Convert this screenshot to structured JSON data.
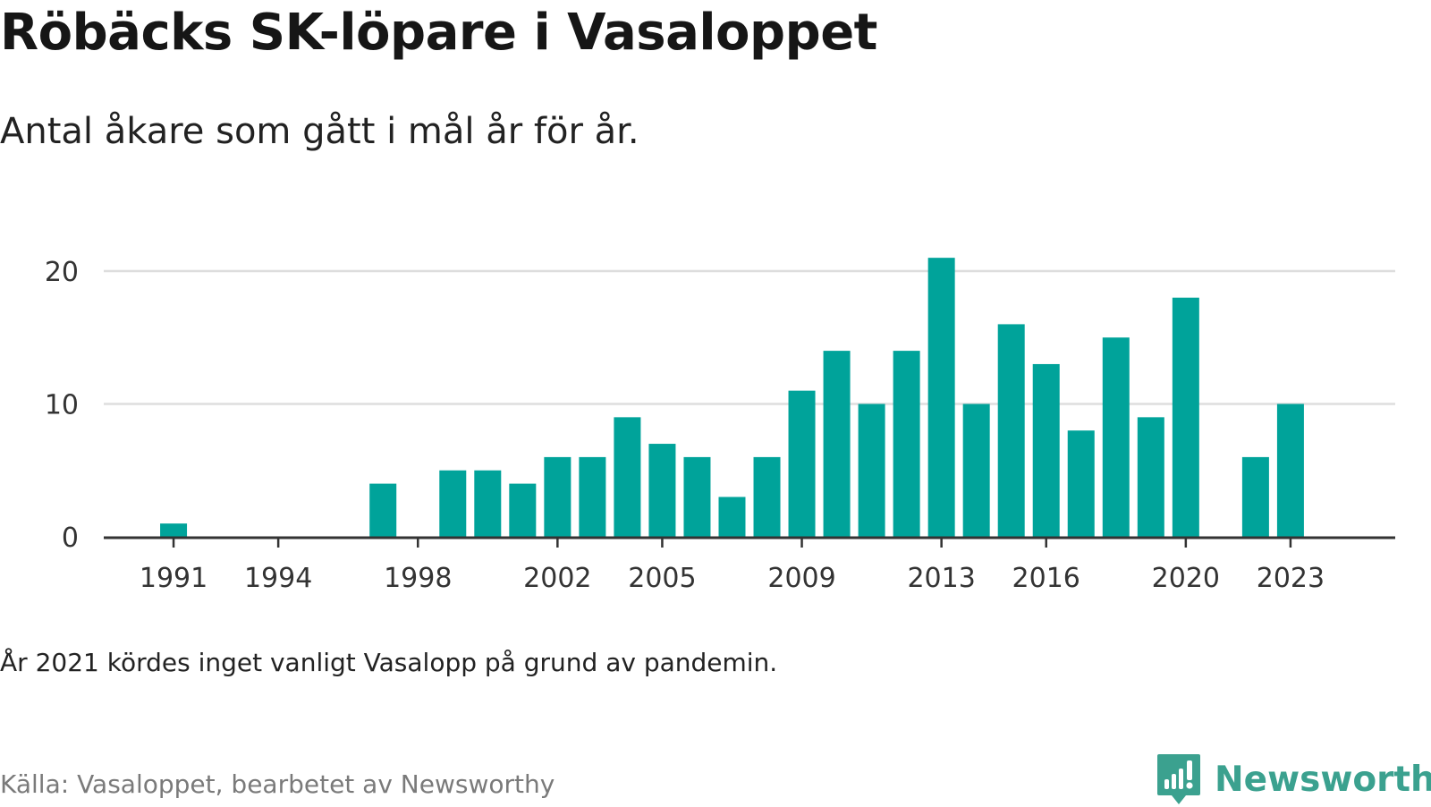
{
  "title": "Röbäcks SK-löpare i Vasaloppet",
  "subtitle": "Antal åkare som gått i mål år för år.",
  "note": "År 2021 kördes inget vanligt Vasalopp på grund av pandemin.",
  "source": "Källa: Vasaloppet, bearbetet av Newsworthy",
  "brand": {
    "name": "Newsworthy",
    "icon": "newsworthy-logo-icon",
    "color": "#3ba18f"
  },
  "colors": {
    "bar": "#00a39a",
    "gridline": "#dddddd",
    "axis": "#333333"
  },
  "chart_data": {
    "type": "bar",
    "title": "Röbäcks SK-löpare i Vasaloppet",
    "subtitle": "Antal åkare som gått i mål år för år.",
    "xlabel": "",
    "ylabel": "",
    "x_range": [
      1989,
      2026
    ],
    "ylim": [
      0,
      21
    ],
    "y_ticks": [
      0,
      10,
      20
    ],
    "x_ticks": [
      1991,
      1994,
      1998,
      2002,
      2005,
      2009,
      2013,
      2016,
      2020,
      2023
    ],
    "grid": true,
    "categories": [
      1991,
      1997,
      1999,
      2000,
      2001,
      2002,
      2003,
      2004,
      2005,
      2006,
      2007,
      2008,
      2009,
      2010,
      2011,
      2012,
      2013,
      2014,
      2015,
      2016,
      2017,
      2018,
      2019,
      2020,
      2022,
      2023
    ],
    "values": [
      1,
      4,
      5,
      5,
      4,
      6,
      6,
      9,
      7,
      6,
      3,
      6,
      11,
      14,
      10,
      14,
      21,
      10,
      16,
      13,
      8,
      15,
      9,
      18,
      6,
      10
    ]
  }
}
